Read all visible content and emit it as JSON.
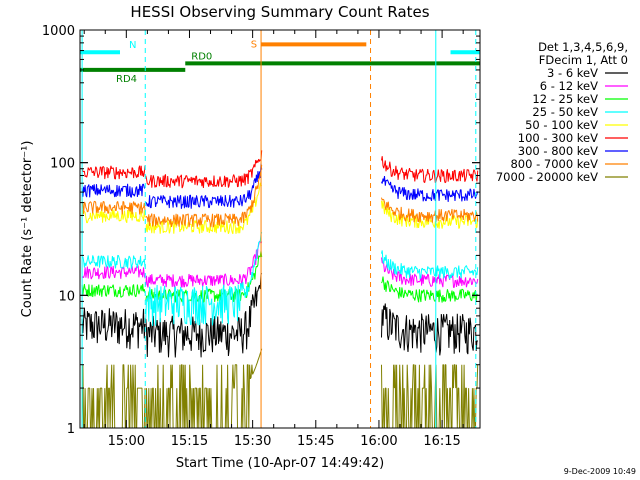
{
  "chart_data": {
    "type": "line",
    "title": "HESSI Observing Summary Count Rates",
    "xlabel": "Start Time (10-Apr-07 14:49:42)",
    "ylabel": "Count Rate (s⁻¹ detector⁻¹)",
    "y_scale": "log",
    "ylim": [
      1,
      1000
    ],
    "xlim_minutes_after_1450": [
      -1,
      94
    ],
    "x_ticks": [
      {
        "t": 10,
        "label": "15:00"
      },
      {
        "t": 25,
        "label": "15:15"
      },
      {
        "t": 40,
        "label": "15:30"
      },
      {
        "t": 55,
        "label": "15:45"
      },
      {
        "t": 70,
        "label": "16:00"
      },
      {
        "t": 85,
        "label": "16:15"
      }
    ],
    "y_ticks": [
      {
        "v": 1,
        "label": "1"
      },
      {
        "v": 10,
        "label": "10"
      },
      {
        "v": 100,
        "label": "100"
      },
      {
        "v": 1000,
        "label": "1000"
      }
    ],
    "legend": {
      "placement": "right",
      "header": [
        "Det 1,3,4,5,6,9,",
        "FDecim 1, Att 0"
      ]
    },
    "series": [
      {
        "name": "3 - 6 keV",
        "color": "#000000",
        "levels": [
          6.0,
          5.2,
          5.4
        ],
        "peak": 14
      },
      {
        "name": "6 - 12 keV",
        "color": "#ff00ff",
        "levels": [
          15,
          13,
          13
        ],
        "peak": 27
      },
      {
        "name": "12 - 25 keV",
        "color": "#00ff00",
        "levels": [
          11,
          10,
          10
        ],
        "peak": 22
      },
      {
        "name": "25 - 50 keV",
        "color": "#00ffff",
        "levels": [
          18,
          9,
          15
        ],
        "peak": 32
      },
      {
        "name": "50 - 100 keV",
        "color": "#ffff00",
        "levels": [
          40,
          33,
          36
        ],
        "peak": 75
      },
      {
        "name": "100 - 300 keV",
        "color": "#ff0000",
        "levels": [
          85,
          73,
          80
        ],
        "peak": 120
      },
      {
        "name": "300 - 800 keV",
        "color": "#0000ff",
        "levels": [
          62,
          51,
          57
        ],
        "peak": 95
      },
      {
        "name": "800 - 7000 keV",
        "color": "#ff8000",
        "levels": [
          46,
          37,
          40
        ],
        "peak": 88
      },
      {
        "name": "7000 - 20000 keV",
        "color": "#808000",
        "levels": [
          2.0,
          2.0,
          2.0
        ],
        "peak": 4
      }
    ],
    "intervals": [
      {
        "label": "N",
        "color": "#00ffff",
        "start": -1,
        "end": 8.5,
        "level": 680
      },
      {
        "label": "",
        "color": "#00ffff",
        "start": 87,
        "end": 94,
        "level": 680
      },
      {
        "label": "S",
        "color": "#ff8000",
        "start": 42,
        "end": 67,
        "level": 780
      },
      {
        "label": "RD0",
        "color": "#008000",
        "start": 24,
        "end": 94,
        "level": 560
      },
      {
        "label": "RD4",
        "color": "#008000",
        "start": -1,
        "end": 24,
        "level": 500
      }
    ],
    "markers": [
      {
        "t": 14.5,
        "color": "#00ffff",
        "style": "dashed"
      },
      {
        "t": 83.5,
        "color": "#00ffff",
        "style": "solid"
      },
      {
        "t": 93,
        "color": "#00ffff",
        "style": "dashed"
      },
      {
        "t": -0.5,
        "color": "#00ffff",
        "style": "solid"
      },
      {
        "t": 42,
        "color": "#ff8000",
        "style": "solid"
      },
      {
        "t": 68,
        "color": "#ff8000",
        "style": "dashed"
      }
    ],
    "gaps": [
      [
        42.2,
        70.5
      ]
    ]
  },
  "footer": {
    "timestamp": "9-Dec-2009 10:49"
  }
}
